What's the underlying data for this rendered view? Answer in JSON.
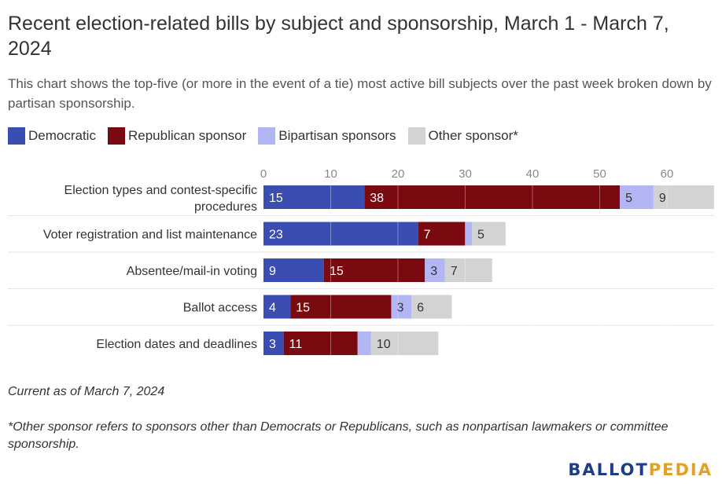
{
  "title": "Recent election-related bills by subject and sponsorship, March 1 - March 7, 2024",
  "subtitle": "This chart shows the top-five (or more in the event of a tie) most active bill subjects over the past week broken down by partisan sponsorship.",
  "footnote_current": "Current as of March 7, 2024",
  "footnote_other": "*Other sponsor refers to sponsors other than Democrats or Republicans, such as nonpartisan lawmakers or committee sponsorship.",
  "logo": {
    "part1": "BALLOT",
    "part2": "PEDIA"
  },
  "colors": {
    "democratic": "#3a4db0",
    "republican": "#7a0a10",
    "bipartisan": "#b3b6f5",
    "other": "#d3d3d3"
  },
  "chart_data": {
    "type": "bar",
    "orientation": "horizontal",
    "stacked": true,
    "title": "Recent election-related bills by subject and sponsorship, March 1 - March 7, 2024",
    "xlim": [
      0,
      67
    ],
    "x_ticks": [
      0,
      10,
      20,
      30,
      40,
      50,
      60
    ],
    "grid": true,
    "legend_position": "top-left",
    "categories": [
      "Election types and contest-specific procedures",
      "Voter registration and list maintenance",
      "Absentee/mail-in voting",
      "Ballot access",
      "Election dates and deadlines"
    ],
    "series": [
      {
        "name": "Democratic",
        "color": "#3a4db0",
        "label_color": "#ffffff",
        "values": [
          15,
          23,
          9,
          4,
          3
        ]
      },
      {
        "name": "Republican sponsor",
        "color": "#7a0a10",
        "label_color": "#ffffff",
        "values": [
          38,
          7,
          15,
          15,
          11
        ]
      },
      {
        "name": "Bipartisan sponsors",
        "color": "#b3b6f5",
        "label_color": "#333333",
        "values": [
          5,
          1,
          3,
          3,
          2
        ],
        "labels": [
          "5",
          "",
          "3",
          "3",
          ""
        ]
      },
      {
        "name": "Other sponsor*",
        "color": "#d3d3d3",
        "label_color": "#333333",
        "values": [
          9,
          5,
          7,
          6,
          10
        ]
      }
    ]
  }
}
